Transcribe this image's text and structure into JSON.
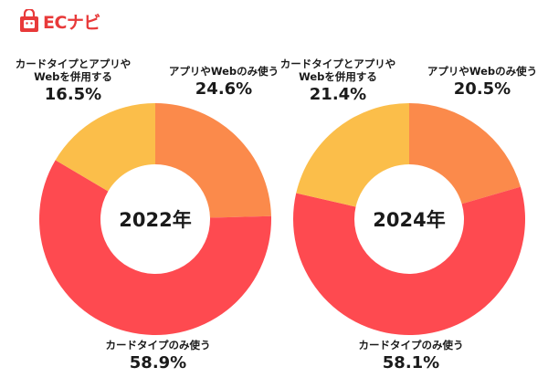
{
  "logo": {
    "text": "ECナビ"
  },
  "colors": {
    "app": "#fb8a4b",
    "card": "#fe4a50",
    "both": "#fbbe4a",
    "logo": "#e83a3a"
  },
  "chart_data": [
    {
      "type": "pie",
      "title": "2022年",
      "slices": [
        {
          "label": "アプリやWebのみ使う",
          "value": 24.6,
          "value_text": "24.6%",
          "color": "#fb8a4b"
        },
        {
          "label": "カードタイプのみ使う",
          "value": 58.9,
          "value_text": "58.9%",
          "color": "#fe4a50"
        },
        {
          "label": "カードタイプとアプリやWebを併用する",
          "label_lines": [
            "カードタイプとアプリや",
            "Webを併用する"
          ],
          "value": 16.5,
          "value_text": "16.5%",
          "color": "#fbbe4a"
        }
      ]
    },
    {
      "type": "pie",
      "title": "2024年",
      "slices": [
        {
          "label": "アプリやWebのみ使う",
          "value": 20.5,
          "value_text": "20.5%",
          "color": "#fb8a4b"
        },
        {
          "label": "カードタイプのみ使う",
          "value": 58.1,
          "value_text": "58.1%",
          "color": "#fe4a50"
        },
        {
          "label": "カードタイプとアプリやWebを併用する",
          "label_lines": [
            "カードタイプとアプリや",
            "Webを併用する"
          ],
          "value": 21.4,
          "value_text": "21.4%",
          "color": "#fbbe4a"
        }
      ]
    }
  ]
}
